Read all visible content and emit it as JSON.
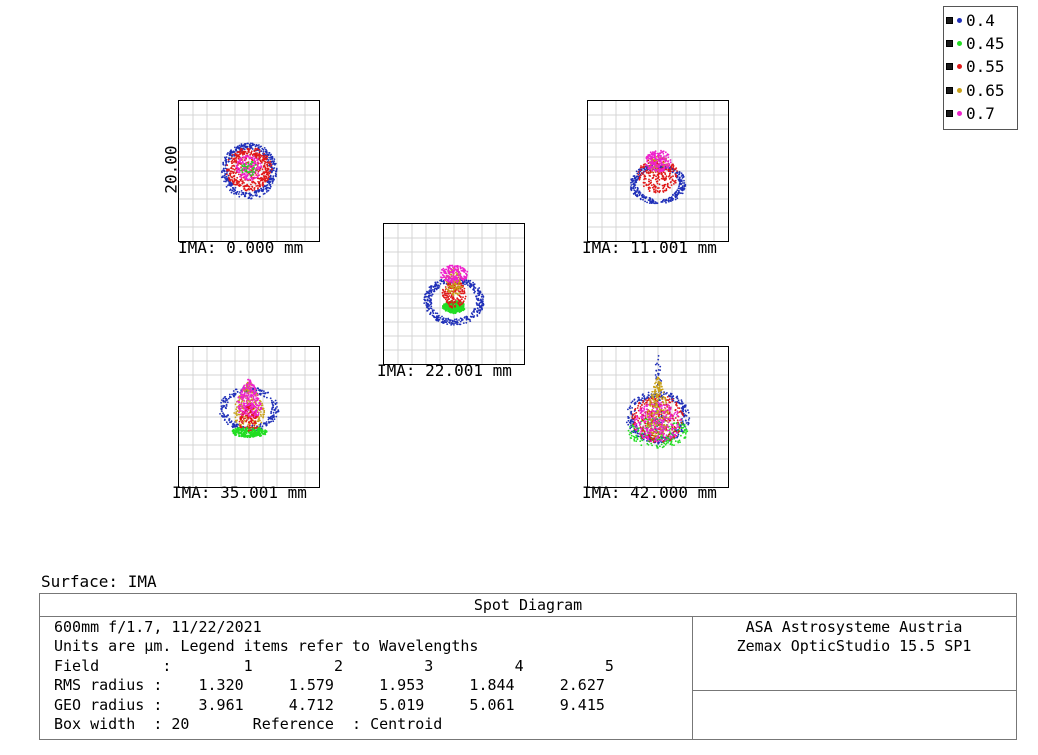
{
  "legend": {
    "items": [
      {
        "label": "0.4",
        "color": "#1f2fb8"
      },
      {
        "label": "0.45",
        "color": "#22dd22"
      },
      {
        "label": "0.55",
        "color": "#e01818"
      },
      {
        "label": "0.65",
        "color": "#c8a018"
      },
      {
        "label": "0.7",
        "color": "#ee22cc"
      }
    ]
  },
  "scale_label": "20.00",
  "fields": [
    {
      "label": "IMA: 0.000 mm"
    },
    {
      "label": "IMA: 11.001 mm"
    },
    {
      "label": "IMA: 22.001 mm"
    },
    {
      "label": "IMA: 35.001 mm"
    },
    {
      "label": "IMA: 42.000 mm"
    }
  ],
  "surface_label": "Surface: IMA",
  "table": {
    "title": "Spot Diagram",
    "line1": "600mm f/1.7, 11/22/2021",
    "line2": "Units are µm. Legend items refer to Wavelengths",
    "row_field": "Field       :        1         2         3         4         5",
    "row_rms": "RMS radius :    1.320     1.579     1.953     1.844     2.627",
    "row_geo": "GEO radius :    3.961     4.712     5.019     5.061     9.415",
    "row_box": "Box width  : 20       Reference  : Centroid",
    "company": "ASA Astrosysteme Austria",
    "software": "Zemax OpticStudio 15.5 SP1"
  }
}
